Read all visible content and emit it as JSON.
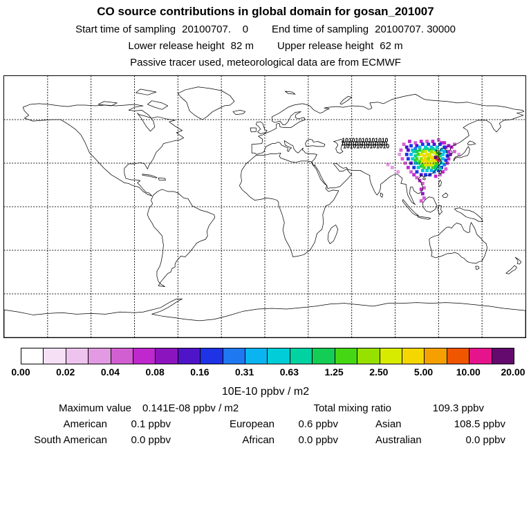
{
  "header": {
    "title": "CO  source contributions in global domain for gosan_201007",
    "start_label": "Start time of sampling",
    "start_value": "20100707.    0",
    "end_label": "End time of sampling",
    "end_value": "20100707. 30000",
    "lower_label": "Lower release height",
    "lower_value": "82 m",
    "upper_label": "Upper release height",
    "upper_value": "62 m",
    "tracer_note": "Passive tracer used, meteorological data are from ECMWF"
  },
  "colorbar": {
    "unit": "10E-10 ppbv / m2",
    "ticks": [
      "0.00",
      "0.02",
      "0.04",
      "0.08",
      "0.16",
      "0.31",
      "0.63",
      "1.25",
      "2.50",
      "5.00",
      "10.00",
      "20.00"
    ],
    "colors": [
      "#ffffff",
      "#f5e0f5",
      "#eec3ee",
      "#e29ae2",
      "#d25fd2",
      "#be28cd",
      "#8c14be",
      "#5014c8",
      "#1e32e6",
      "#1e78f0",
      "#0ab4f0",
      "#00cdd7",
      "#00d2a0",
      "#14cd55",
      "#46d714",
      "#96e100",
      "#d7eb00",
      "#f5d700",
      "#f5a000",
      "#f05500",
      "#e6148c",
      "#640a6e"
    ]
  },
  "stats": {
    "max_label": "Maximum value",
    "max_value": "0.141E-08 ppbv / m2",
    "total_label": "Total mixing ratio",
    "total_value": "109.3 ppbv",
    "regions": [
      {
        "label": "American",
        "value": "0.1 ppbv"
      },
      {
        "label": "European",
        "value": "0.6 ppbv"
      },
      {
        "label": "Asian",
        "value": "108.5 ppbv"
      },
      {
        "label": "South American",
        "value": "0.0 ppbv"
      },
      {
        "label": "African",
        "value": "0.0 ppbv"
      },
      {
        "label": "Australian",
        "value": "0.0 ppbv"
      }
    ]
  },
  "map": {
    "annotation": "10101010101010"
  },
  "chart_data": {
    "type": "heatmap",
    "title": "CO source contributions in global domain for gosan_201007",
    "projection": "equirectangular",
    "lon_range": [
      -180,
      180
    ],
    "lat_range": [
      -90,
      90
    ],
    "grid_spacing_deg": 30,
    "unit": "10E-10 ppbv / m2",
    "scale_ticks": [
      0.0,
      0.02,
      0.04,
      0.08,
      0.16,
      0.31,
      0.63,
      1.25,
      2.5,
      5.0,
      10.0,
      20.0
    ],
    "max_value_ppbv_m2": 1.41e-09,
    "total_mixing_ratio_ppbv": 109.3,
    "contributions_ppbv": {
      "American": 0.1,
      "European": 0.6,
      "Asian": 108.5,
      "South American": 0.0,
      "African": 0.0,
      "Australian": 0.0
    },
    "cells": [
      [
        96,
        43,
        4
      ],
      [
        100,
        45,
        5
      ],
      [
        104,
        44,
        4
      ],
      [
        108,
        45,
        5
      ],
      [
        112,
        45,
        4
      ],
      [
        116,
        45,
        5
      ],
      [
        120,
        46,
        4
      ],
      [
        124,
        44,
        5
      ],
      [
        127,
        42,
        6
      ],
      [
        129,
        41,
        5
      ],
      [
        131,
        43,
        4
      ],
      [
        122,
        44,
        5
      ],
      [
        94,
        39,
        4
      ],
      [
        93,
        36,
        3
      ],
      [
        95,
        33,
        4
      ],
      [
        97,
        30,
        4
      ],
      [
        99,
        27,
        5
      ],
      [
        101,
        24,
        4
      ],
      [
        103,
        22,
        5
      ],
      [
        105,
        20,
        4
      ],
      [
        107,
        18,
        5
      ],
      [
        109,
        16,
        4
      ],
      [
        126,
        30,
        5
      ],
      [
        127,
        33,
        5
      ],
      [
        128,
        36,
        6
      ],
      [
        127,
        38,
        5
      ],
      [
        125,
        41,
        6
      ],
      [
        131,
        38,
        4
      ],
      [
        118,
        21,
        5
      ],
      [
        121,
        22,
        4
      ],
      [
        123,
        24,
        5
      ],
      [
        125,
        26,
        4
      ],
      [
        108,
        12,
        5
      ],
      [
        109,
        9,
        6
      ],
      [
        110,
        6,
        4
      ],
      [
        108,
        4,
        4
      ],
      [
        110,
        13,
        4
      ],
      [
        88,
        27,
        3
      ],
      [
        85,
        29,
        3
      ],
      [
        134,
        36,
        3
      ],
      [
        92,
        24,
        3
      ],
      [
        98,
        41,
        7
      ],
      [
        101,
        42,
        8
      ],
      [
        105,
        42,
        7
      ],
      [
        109,
        43,
        8
      ],
      [
        113,
        43,
        8
      ],
      [
        117,
        43,
        7
      ],
      [
        121,
        43,
        8
      ],
      [
        124,
        41,
        8
      ],
      [
        125,
        38,
        9
      ],
      [
        126,
        35,
        8
      ],
      [
        125,
        32,
        8
      ],
      [
        124,
        29,
        9
      ],
      [
        122,
        27,
        8
      ],
      [
        120,
        25,
        8
      ],
      [
        117,
        24,
        9
      ],
      [
        114,
        22,
        8
      ],
      [
        111,
        22,
        8
      ],
      [
        108,
        22,
        7
      ],
      [
        105,
        24,
        8
      ],
      [
        103,
        27,
        8
      ],
      [
        101,
        30,
        7
      ],
      [
        99,
        33,
        8
      ],
      [
        98,
        36,
        8
      ],
      [
        99,
        39,
        7
      ],
      [
        102,
        39,
        10
      ],
      [
        104,
        40,
        9
      ],
      [
        107,
        41,
        10
      ],
      [
        111,
        41,
        11
      ],
      [
        115,
        41,
        10
      ],
      [
        119,
        41,
        11
      ],
      [
        122,
        39,
        10
      ],
      [
        123,
        36,
        11
      ],
      [
        123,
        33,
        10
      ],
      [
        122,
        30,
        11
      ],
      [
        120,
        28,
        10
      ],
      [
        118,
        26,
        11
      ],
      [
        115,
        25,
        10
      ],
      [
        112,
        25,
        11
      ],
      [
        109,
        25,
        10
      ],
      [
        106,
        27,
        11
      ],
      [
        104,
        30,
        10
      ],
      [
        102,
        33,
        11
      ],
      [
        101,
        36,
        10
      ],
      [
        103,
        38,
        12
      ],
      [
        121,
        26,
        12
      ],
      [
        124,
        38,
        10
      ],
      [
        105,
        38,
        13
      ],
      [
        104,
        35,
        12
      ],
      [
        104,
        32,
        13
      ],
      [
        106,
        30,
        12
      ],
      [
        108,
        28,
        13
      ],
      [
        110,
        27,
        14
      ],
      [
        113,
        27,
        13
      ],
      [
        116,
        27,
        14
      ],
      [
        118,
        28,
        13
      ],
      [
        119,
        30,
        14
      ],
      [
        121,
        32,
        13
      ],
      [
        121,
        35,
        12
      ],
      [
        120,
        37,
        13
      ],
      [
        118,
        39,
        12
      ],
      [
        114,
        39,
        13
      ],
      [
        110,
        39,
        12
      ],
      [
        107,
        39,
        13
      ],
      [
        106,
        36,
        14
      ],
      [
        105,
        33,
        14
      ],
      [
        107,
        31,
        14
      ],
      [
        109,
        29,
        14
      ],
      [
        120,
        34,
        14
      ],
      [
        119,
        37,
        14
      ],
      [
        112,
        40,
        12
      ],
      [
        116,
        40,
        12
      ],
      [
        108,
        36,
        16
      ],
      [
        108,
        33,
        15
      ],
      [
        109,
        31,
        16
      ],
      [
        111,
        29,
        16
      ],
      [
        113,
        29,
        17
      ],
      [
        115,
        29,
        16
      ],
      [
        117,
        30,
        15
      ],
      [
        118,
        32,
        16
      ],
      [
        119,
        35,
        15
      ],
      [
        117,
        37,
        16
      ],
      [
        115,
        38,
        15
      ],
      [
        111,
        38,
        16
      ],
      [
        109,
        38,
        15
      ],
      [
        110,
        35,
        17
      ],
      [
        110,
        32,
        17
      ],
      [
        112,
        31,
        17
      ],
      [
        114,
        31,
        16
      ],
      [
        116,
        32,
        17
      ],
      [
        117,
        34,
        16
      ],
      [
        112,
        36,
        17
      ],
      [
        114,
        36,
        16
      ],
      [
        115,
        34,
        17
      ],
      [
        113,
        34,
        16
      ],
      [
        111,
        33,
        17
      ],
      [
        113,
        33,
        15
      ],
      [
        119,
        33,
        19
      ],
      [
        118,
        34,
        21
      ],
      [
        120,
        32,
        20
      ]
    ]
  }
}
